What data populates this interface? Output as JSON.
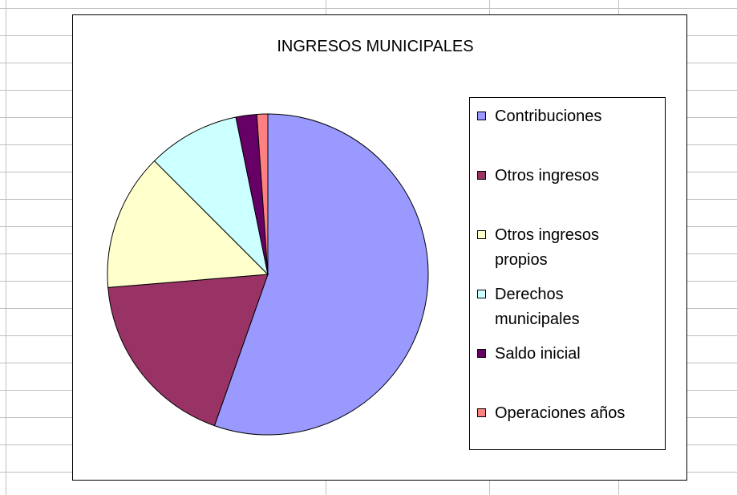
{
  "chart_data": {
    "type": "pie",
    "title": "INGRESOS MUNICIPALES",
    "categories": [
      "Contribuciones",
      "Otros ingresos",
      "Otros ingresos propios",
      "Derechos municipales",
      "Saldo inicial",
      "Operaciones años"
    ],
    "values": [
      55.4,
      18.3,
      13.8,
      9.3,
      2.1,
      1.1
    ],
    "colors": [
      "#9999ff",
      "#993366",
      "#ffffcc",
      "#ccffff",
      "#660066",
      "#ff8080"
    ],
    "legend": "right"
  }
}
